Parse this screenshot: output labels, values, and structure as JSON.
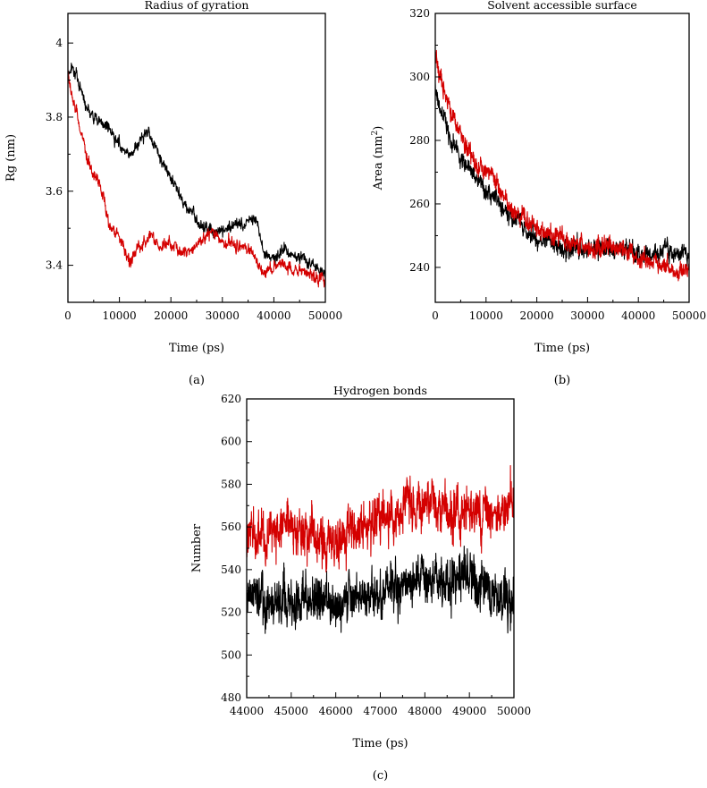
{
  "colors": {
    "series_1": "#000000",
    "series_2": "#d40000",
    "axis": "#000000"
  },
  "chart_data": [
    {
      "id": "a",
      "type": "line",
      "title": "Radius of gyration",
      "xlabel": "Time (ps)",
      "ylabel": "Rg (nm)",
      "panel_label": "(a)",
      "xlim": [
        0,
        50000
      ],
      "ylim": [
        3.3,
        4.08
      ],
      "xticks": [
        0,
        10000,
        20000,
        30000,
        40000,
        50000
      ],
      "yticks": [
        3.4,
        3.6,
        3.8,
        4.0
      ],
      "ytick_labels": [
        "3.4",
        "3.6",
        "3.8",
        "4"
      ],
      "series": [
        {
          "color": "#000000",
          "x": [
            0,
            1000,
            2000,
            4000,
            6000,
            8000,
            10000,
            12000,
            14000,
            15500,
            17000,
            19000,
            21000,
            23000,
            25000,
            27000,
            29000,
            31000,
            33000,
            35000,
            36500,
            38000,
            40000,
            42000,
            44000,
            46000,
            48000,
            50000
          ],
          "y": [
            3.92,
            3.94,
            3.9,
            3.82,
            3.79,
            3.77,
            3.73,
            3.7,
            3.73,
            3.77,
            3.72,
            3.66,
            3.61,
            3.56,
            3.52,
            3.5,
            3.49,
            3.5,
            3.51,
            3.52,
            3.53,
            3.44,
            3.42,
            3.44,
            3.43,
            3.42,
            3.4,
            3.37
          ]
        },
        {
          "color": "#d40000",
          "x": [
            0,
            1000,
            2000,
            3000,
            4000,
            5000,
            6000,
            7000,
            8000,
            10000,
            12000,
            14000,
            16000,
            18000,
            20000,
            22000,
            24000,
            26000,
            28000,
            30000,
            32000,
            34000,
            36000,
            37000,
            38000,
            40000,
            42000,
            44000,
            46000,
            48000,
            50000
          ],
          "y": [
            3.92,
            3.84,
            3.8,
            3.73,
            3.68,
            3.64,
            3.63,
            3.58,
            3.51,
            3.47,
            3.41,
            3.45,
            3.48,
            3.45,
            3.46,
            3.43,
            3.44,
            3.47,
            3.49,
            3.47,
            3.46,
            3.45,
            3.44,
            3.4,
            3.38,
            3.4,
            3.4,
            3.39,
            3.38,
            3.37,
            3.36
          ]
        }
      ]
    },
    {
      "id": "b",
      "type": "line",
      "title": "Solvent accessible surface",
      "xlabel": "Time (ps)",
      "ylabel": "Area (nm",
      "ylabel_sup": "2",
      "ylabel_end": ")",
      "panel_label": "(b)",
      "xlim": [
        0,
        50000
      ],
      "ylim": [
        229,
        320
      ],
      "xticks": [
        0,
        10000,
        20000,
        30000,
        40000,
        50000
      ],
      "yticks": [
        240,
        260,
        280,
        300,
        320
      ],
      "series": [
        {
          "color": "#000000",
          "x": [
            0,
            1000,
            2000,
            3000,
            5000,
            7000,
            10000,
            12000,
            15000,
            18000,
            20000,
            25000,
            30000,
            35000,
            40000,
            45000,
            50000
          ],
          "y": [
            296,
            290,
            285,
            280,
            275,
            270,
            264,
            262,
            256,
            252,
            249,
            246,
            246,
            246,
            244,
            245,
            244
          ]
        },
        {
          "color": "#d40000",
          "x": [
            0,
            1000,
            2000,
            3000,
            5000,
            7000,
            10000,
            11000,
            12000,
            15000,
            18000,
            20000,
            25000,
            30000,
            35000,
            40000,
            45000,
            48000,
            50000
          ],
          "y": [
            306,
            300,
            294,
            289,
            282,
            275,
            270,
            273,
            266,
            259,
            254,
            252,
            249,
            246,
            247,
            243,
            241,
            238,
            240
          ]
        }
      ]
    },
    {
      "id": "c",
      "type": "line",
      "title": "Hydrogen bonds",
      "xlabel": "Time (ps)",
      "ylabel": "Number",
      "panel_label": "(c)",
      "xlim": [
        44000,
        50000
      ],
      "ylim": [
        480,
        620
      ],
      "xticks": [
        44000,
        45000,
        46000,
        47000,
        48000,
        49000,
        50000
      ],
      "yticks": [
        480,
        500,
        520,
        540,
        560,
        580,
        600,
        620
      ],
      "series": [
        {
          "color": "#000000",
          "x": [
            44000,
            44500,
            45000,
            45500,
            46000,
            46500,
            47000,
            47500,
            48000,
            48500,
            49000,
            49500,
            50000
          ],
          "y": [
            522,
            524,
            523,
            526,
            522,
            528,
            526,
            530,
            535,
            533,
            536,
            530,
            528
          ]
        },
        {
          "color": "#d40000",
          "x": [
            44000,
            44500,
            45000,
            45500,
            46000,
            46500,
            47000,
            47500,
            48000,
            48500,
            49000,
            49500,
            50000
          ],
          "y": [
            557,
            556,
            560,
            557,
            550,
            562,
            565,
            570,
            572,
            566,
            568,
            566,
            570
          ]
        }
      ]
    }
  ]
}
